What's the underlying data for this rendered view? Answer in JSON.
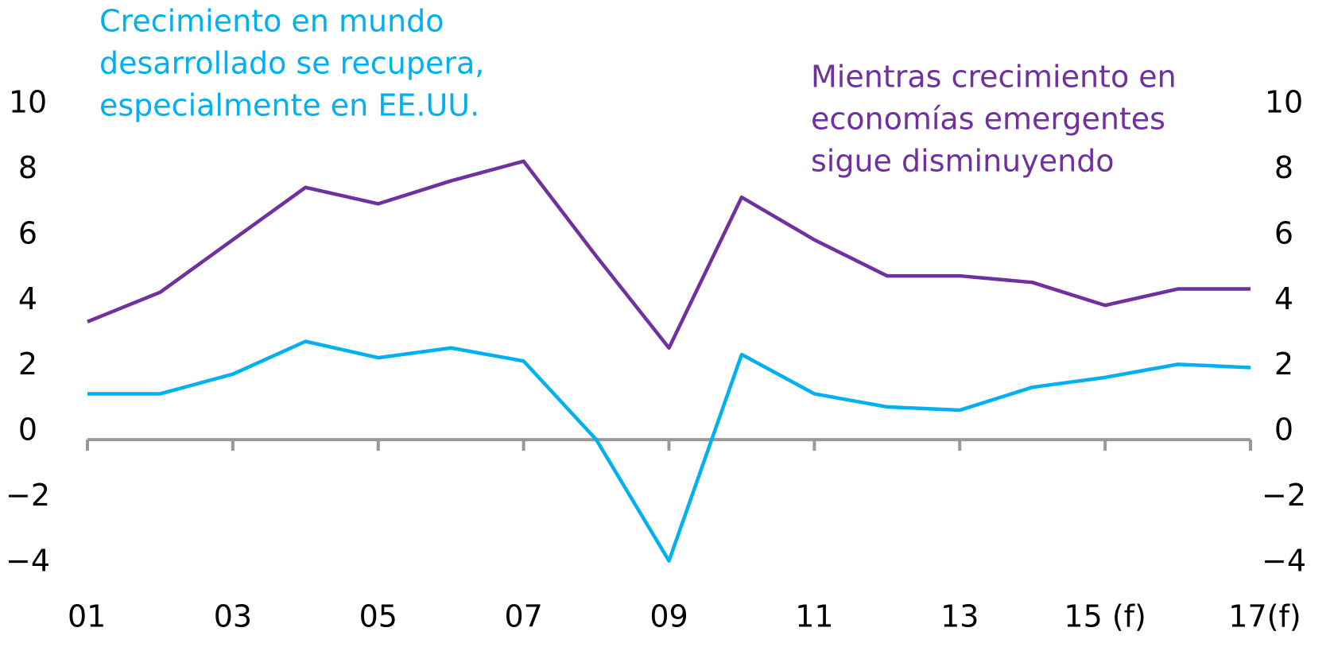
{
  "chart_data": {
    "type": "line",
    "categories": [
      "01",
      null,
      "03",
      null,
      "05",
      null,
      "07",
      null,
      "09",
      null,
      "11",
      null,
      "13",
      null,
      "15 (f)",
      null,
      "17(f)"
    ],
    "series": [
      {
        "color": "#7030a0",
        "values": [
          3.6,
          4.5,
          6.1,
          7.7,
          7.2,
          7.9,
          8.5,
          5.6,
          2.8,
          7.4,
          6.1,
          5.0,
          5.0,
          4.8,
          4.1,
          4.6,
          4.6
        ]
      },
      {
        "color": "#00b0f0",
        "values": [
          1.4,
          1.4,
          2.0,
          3.0,
          2.5,
          2.8,
          2.4,
          0.0,
          -3.7,
          2.6,
          1.4,
          1.0,
          0.9,
          1.6,
          1.9,
          2.3,
          2.2
        ]
      }
    ],
    "ylim": [
      -4,
      10
    ],
    "yticks": [
      {
        "value": -4,
        "label": "−4"
      },
      {
        "value": -2,
        "label": "−2"
      },
      0,
      2,
      4,
      6,
      8,
      10
    ],
    "annotations": [
      {
        "color": "#00b0f0",
        "lines": [
          "Crecimiento en mundo",
          "desarrollado se recupera,",
          "especialmente en EE.UU."
        ]
      },
      {
        "color": "#7030a0",
        "lines": [
          "Mientras crecimiento en",
          "economías emergentes",
          "sigue disminuyendo"
        ]
      }
    ]
  }
}
